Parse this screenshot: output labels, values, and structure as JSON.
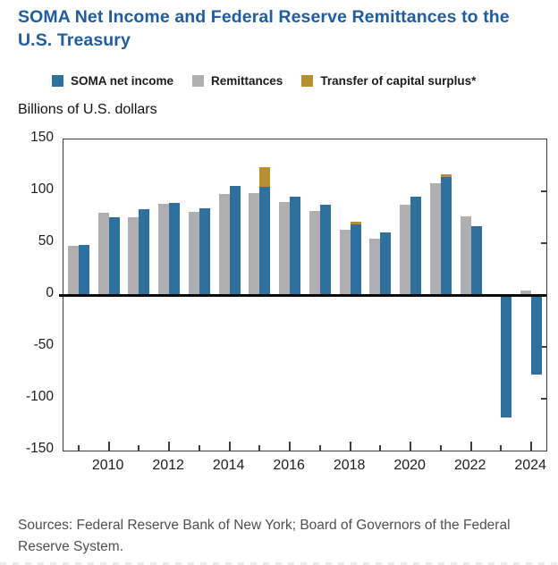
{
  "title": "SOMA Net Income and Federal Reserve Remittances to the U.S. Treasury",
  "y_axis_title": "Billions of U.S. dollars",
  "legend": [
    {
      "label": "SOMA net income",
      "color": "#2E709F"
    },
    {
      "label": "Remittances",
      "color": "#AFAFB2"
    },
    {
      "label": "Transfer of capital surplus*",
      "color": "#B5912E"
    }
  ],
  "sources": "Sources: Federal Reserve Bank of New York; Board of Governors of the Federal Reserve System.",
  "colors": {
    "title_blue": "#1E5DA4",
    "soma_blue": "#2E709F",
    "remittances_gray": "#AFAFB2",
    "surplus_gold": "#B5912E",
    "axis_frame": "#3c3c3c",
    "zero_line": "#0a0a0a"
  },
  "chart_data": {
    "type": "bar",
    "title": "SOMA Net Income and Federal Reserve Remittances to the U.S. Treasury",
    "ylabel": "Billions of U.S. dollars",
    "xlabel": "",
    "ylim": [
      -150,
      150
    ],
    "ytick_interval": 50,
    "yticks": [
      150,
      100,
      50,
      0,
      -50,
      -100,
      -150
    ],
    "grid": false,
    "legend_position": "top",
    "categories": [
      2009,
      2010,
      2011,
      2012,
      2013,
      2014,
      2015,
      2016,
      2017,
      2018,
      2019,
      2020,
      2021,
      2022,
      2023,
      2024
    ],
    "xtick_labels": [
      "2010",
      "2012",
      "2014",
      "2016",
      "2018",
      "2020",
      "2022",
      "2024"
    ],
    "series": [
      {
        "name": "Remittances",
        "color": "#AFAFB2",
        "values": [
          47,
          79,
          75,
          88,
          80,
          97,
          98,
          90,
          81,
          63,
          54,
          87,
          108,
          76,
          1,
          4
        ]
      },
      {
        "name": "SOMA net income",
        "color": "#2E709F",
        "values": [
          48,
          75,
          83,
          89,
          84,
          105,
          104,
          95,
          87,
          68,
          60,
          95,
          114,
          66,
          -118,
          -77
        ]
      },
      {
        "name": "Transfer of capital surplus*",
        "color": "#B5912E",
        "stacked_on": "SOMA net income",
        "values": [
          0,
          0,
          0,
          0,
          0,
          0,
          19,
          0,
          0,
          3,
          0,
          0,
          2,
          0,
          0,
          0
        ]
      }
    ]
  }
}
